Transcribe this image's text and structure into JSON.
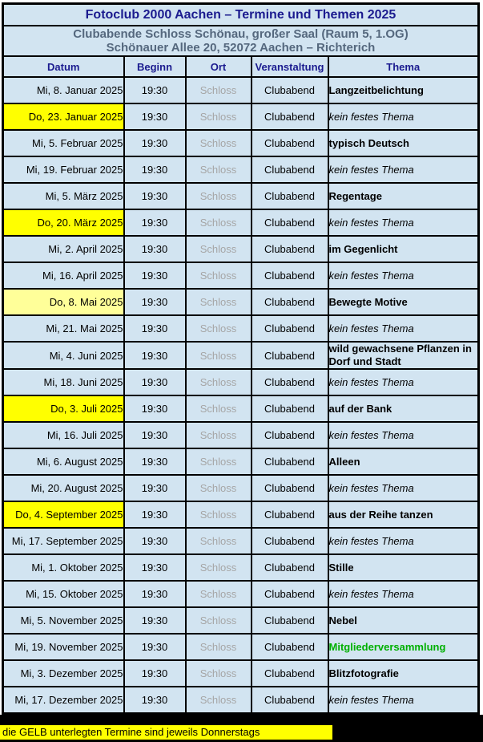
{
  "document": {
    "title": "Fotoclub 2000 Aachen – Termine und Themen 2025",
    "subtitle_line1": "Clubabende Schloss Schönau, großer Saal (Raum 5, 1.OG)",
    "subtitle_line2": "Schönauer Allee 20, 52072 Aachen – Richterich"
  },
  "schedule": {
    "columns": [
      "Datum",
      "Beginn",
      "Ort",
      "Veranstaltung",
      "Thema"
    ],
    "rows": [
      {
        "datum": "Mi, 8. Januar 2025",
        "beginn": "19:30",
        "ort": "Schloss",
        "veranstaltung": "Clubabend",
        "thema": "Langzeitbelichtung",
        "thema_style": "bold",
        "highlight": "none"
      },
      {
        "datum": "Do, 23. Januar 2025",
        "beginn": "19:30",
        "ort": "Schloss",
        "veranstaltung": "Clubabend",
        "thema": "kein festes Thema",
        "thema_style": "italic",
        "highlight": "yellow"
      },
      {
        "datum": "Mi, 5. Februar 2025",
        "beginn": "19:30",
        "ort": "Schloss",
        "veranstaltung": "Clubabend",
        "thema": "typisch Deutsch",
        "thema_style": "bold",
        "highlight": "none"
      },
      {
        "datum": "Mi, 19. Februar 2025",
        "beginn": "19:30",
        "ort": "Schloss",
        "veranstaltung": "Clubabend",
        "thema": "kein festes Thema",
        "thema_style": "italic",
        "highlight": "none"
      },
      {
        "datum": "Mi, 5. März 2025",
        "beginn": "19:30",
        "ort": "Schloss",
        "veranstaltung": "Clubabend",
        "thema": "Regentage",
        "thema_style": "bold",
        "highlight": "none"
      },
      {
        "datum": "Do, 20. März 2025",
        "beginn": "19:30",
        "ort": "Schloss",
        "veranstaltung": "Clubabend",
        "thema": "kein festes Thema",
        "thema_style": "italic",
        "highlight": "yellow"
      },
      {
        "datum": "Mi, 2. April 2025",
        "beginn": "19:30",
        "ort": "Schloss",
        "veranstaltung": "Clubabend",
        "thema": "im Gegenlicht",
        "thema_style": "bold",
        "highlight": "none"
      },
      {
        "datum": "Mi, 16. April 2025",
        "beginn": "19:30",
        "ort": "Schloss",
        "veranstaltung": "Clubabend",
        "thema": "kein festes Thema",
        "thema_style": "italic",
        "highlight": "none"
      },
      {
        "datum": "Do, 8. Mai 2025",
        "beginn": "19:30",
        "ort": "Schloss",
        "veranstaltung": "Clubabend",
        "thema": "Bewegte Motive",
        "thema_style": "bold",
        "highlight": "pale-yellow"
      },
      {
        "datum": "Mi, 21. Mai 2025",
        "beginn": "19:30",
        "ort": "Schloss",
        "veranstaltung": "Clubabend",
        "thema": "kein festes Thema",
        "thema_style": "italic",
        "highlight": "none"
      },
      {
        "datum": "Mi, 4. Juni 2025",
        "beginn": "19:30",
        "ort": "Schloss",
        "veranstaltung": "Clubabend",
        "thema": "wild gewachsene Pflanzen in Dorf und Stadt",
        "thema_style": "bold",
        "highlight": "none"
      },
      {
        "datum": "Mi, 18. Juni 2025",
        "beginn": "19:30",
        "ort": "Schloss",
        "veranstaltung": "Clubabend",
        "thema": "kein festes Thema",
        "thema_style": "italic",
        "highlight": "none"
      },
      {
        "datum": "Do, 3. Juli 2025",
        "beginn": "19:30",
        "ort": "Schloss",
        "veranstaltung": "Clubabend",
        "thema": "auf der Bank",
        "thema_style": "bold",
        "highlight": "yellow"
      },
      {
        "datum": "Mi, 16. Juli 2025",
        "beginn": "19:30",
        "ort": "Schloss",
        "veranstaltung": "Clubabend",
        "thema": "kein festes Thema",
        "thema_style": "italic",
        "highlight": "none"
      },
      {
        "datum": "Mi, 6. August 2025",
        "beginn": "19:30",
        "ort": "Schloss",
        "veranstaltung": "Clubabend",
        "thema": "Alleen",
        "thema_style": "bold",
        "highlight": "none"
      },
      {
        "datum": "Mi, 20. August 2025",
        "beginn": "19:30",
        "ort": "Schloss",
        "veranstaltung": "Clubabend",
        "thema": "kein festes Thema",
        "thema_style": "italic",
        "highlight": "none"
      },
      {
        "datum": "Do, 4. September 2025",
        "beginn": "19:30",
        "ort": "Schloss",
        "veranstaltung": "Clubabend",
        "thema": "aus der Reihe tanzen",
        "thema_style": "bold",
        "highlight": "yellow"
      },
      {
        "datum": "Mi, 17. September 2025",
        "beginn": "19:30",
        "ort": "Schloss",
        "veranstaltung": "Clubabend",
        "thema": "kein festes Thema",
        "thema_style": "italic",
        "highlight": "none"
      },
      {
        "datum": "Mi, 1. Oktober 2025",
        "beginn": "19:30",
        "ort": "Schloss",
        "veranstaltung": "Clubabend",
        "thema": "Stille",
        "thema_style": "bold",
        "highlight": "none"
      },
      {
        "datum": "Mi, 15. Oktober 2025",
        "beginn": "19:30",
        "ort": "Schloss",
        "veranstaltung": "Clubabend",
        "thema": "kein festes Thema",
        "thema_style": "italic",
        "highlight": "none"
      },
      {
        "datum": "Mi, 5. November 2025",
        "beginn": "19:30",
        "ort": "Schloss",
        "veranstaltung": "Clubabend",
        "thema": "Nebel",
        "thema_style": "bold",
        "highlight": "none"
      },
      {
        "datum": "Mi, 19. November 2025",
        "beginn": "19:30",
        "ort": "Schloss",
        "veranstaltung": "Clubabend",
        "thema": "Mitgliederversammlung",
        "thema_style": "bold-green",
        "highlight": "none"
      },
      {
        "datum": "Mi, 3. Dezember 2025",
        "beginn": "19:30",
        "ort": "Schloss",
        "veranstaltung": "Clubabend",
        "thema": "Blitzfotografie",
        "thema_style": "bold",
        "highlight": "none"
      },
      {
        "datum": "Mi, 17. Dezember 2025",
        "beginn": "19:30",
        "ort": "Schloss",
        "veranstaltung": "Clubabend",
        "thema": "kein festes Thema",
        "thema_style": "italic",
        "highlight": "none"
      }
    ]
  },
  "footer": {
    "note": "die GELB unterlegten Termine sind jeweils Donnerstags"
  },
  "colors": {
    "table_background": "#d2e4f1",
    "title_text": "#1b1b8f",
    "subtitle_text": "#55687e",
    "column_header_text": "#1b1b8f",
    "highlight_thursday": "#ffff00",
    "highlight_thursday_pale": "#ffff99",
    "ort_text": "#a6a6a6",
    "announcement_green": "#00b000",
    "border": "#000000",
    "footer_bar": "#000000",
    "footer_note_background": "#ffff00"
  }
}
